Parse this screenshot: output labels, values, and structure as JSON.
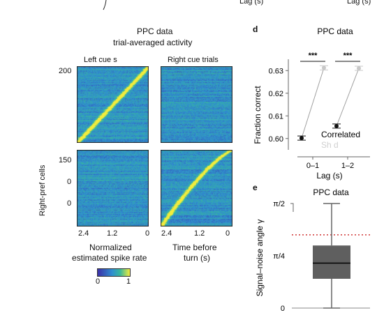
{
  "top": {
    "lag_label_1": "Lag (s)",
    "lag_label_2": "Lag (s)"
  },
  "heatmap_panel": {
    "title": "PPC data",
    "subtitle": "trial-averaged activity",
    "col_left_title": "Left cue    s",
    "col_right_title": "Right cue trials",
    "ylabel": "Right-pref   cells",
    "y_ticks_top": [
      "200"
    ],
    "y_ticks_bottom": [
      "150",
      "0",
      "0"
    ],
    "x_ticks": [
      "2.4",
      "1.2",
      "0"
    ],
    "xlabel_left_line1": "Normalized",
    "xlabel_left_line2": "estimated spike rate",
    "xlabel_right_line1": "Time before",
    "xlabel_right_line2": "turn (s)",
    "colorbar_min": "0",
    "colorbar_max": "1",
    "colors": {
      "low": "#3b2fa8",
      "mid": "#2f8fd0",
      "high": "#f3ec3c"
    }
  },
  "panel_d": {
    "letter": "d",
    "chart_data": {
      "type": "line",
      "title": "PPC data",
      "xlabel": "Lag (s)",
      "ylabel": "Fraction correct",
      "categories": [
        "0–1",
        "1–2"
      ],
      "ylim": [
        0.595,
        0.635
      ],
      "yticks": [
        "0.60",
        "0.61",
        "0.62",
        "0.63"
      ],
      "significance": "***",
      "series": [
        {
          "name": "Correlated",
          "color": "#111111",
          "values": [
            0.6002,
            0.6055
          ]
        },
        {
          "name": "Sh     d",
          "color": "#c8c8c8",
          "values": [
            0.6312,
            0.631
          ]
        }
      ]
    }
  },
  "panel_e": {
    "letter": "e",
    "chart_data": {
      "type": "box",
      "title": "PPC data",
      "ylabel": "Signal–noise angle γ",
      "yticks": [
        "0",
        "π/4",
        "π/2"
      ],
      "ylim": [
        0,
        1.5708
      ],
      "box": {
        "min": 0.0,
        "q1": 0.44,
        "median": 0.675,
        "q3": 0.94,
        "max": 1.5708
      },
      "reference_line": 1.1,
      "box_color": "#5f5f5f",
      "reference_color": "#cc2222"
    }
  }
}
